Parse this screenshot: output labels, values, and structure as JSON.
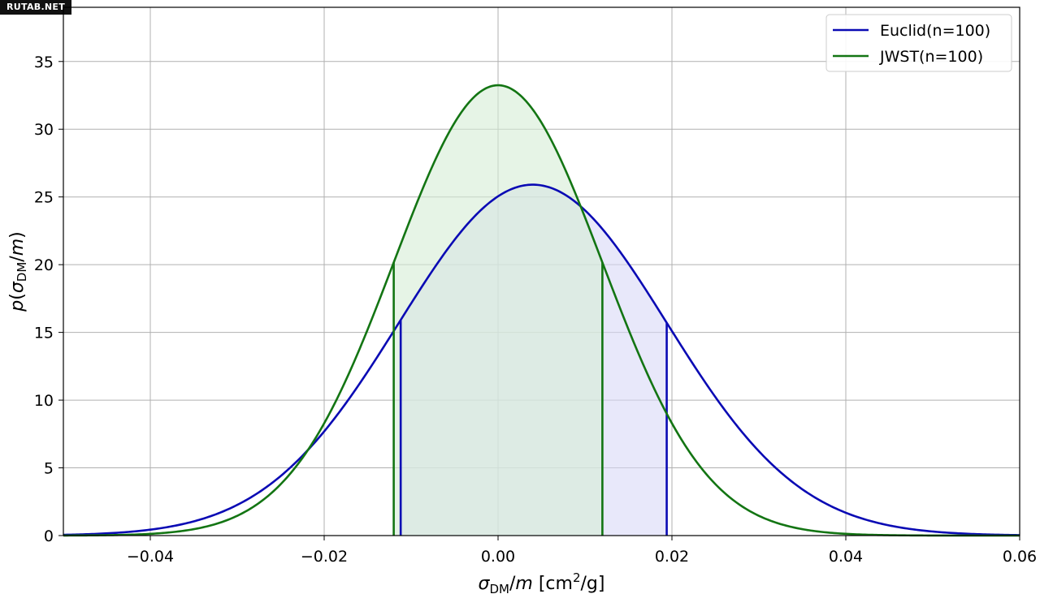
{
  "watermark": "RUTAB.NET",
  "chart_data": {
    "type": "line",
    "xlabel": "σDM/m [cm2/g]",
    "ylabel": "p(σDM/m)",
    "xlim": [
      -0.05,
      0.06
    ],
    "ylim": [
      0,
      39
    ],
    "xticks": [
      -0.04,
      -0.02,
      0.0,
      0.02,
      0.04,
      0.06
    ],
    "xtick_labels": [
      "−0.04",
      "−0.02",
      "0.00",
      "0.02",
      "0.04",
      "0.06"
    ],
    "yticks": [
      0,
      5,
      10,
      15,
      20,
      25,
      30,
      35
    ],
    "ytick_labels": [
      "0",
      "5",
      "10",
      "15",
      "20",
      "25",
      "30",
      "35"
    ],
    "grid": true,
    "legend_position": "top-right",
    "series": [
      {
        "name": "Euclid(n=100)",
        "color": "#0a0ab4",
        "fill": "#d9d9f7",
        "mean": 0.004,
        "sigma": 0.0154,
        "shaded_interval": [
          -0.0112,
          0.0194
        ]
      },
      {
        "name": "JWST(n=100)",
        "color": "#137513",
        "fill": "#d6ecd6",
        "mean": 0.0,
        "sigma": 0.012,
        "shaded_interval": [
          -0.012,
          0.012
        ]
      }
    ]
  }
}
